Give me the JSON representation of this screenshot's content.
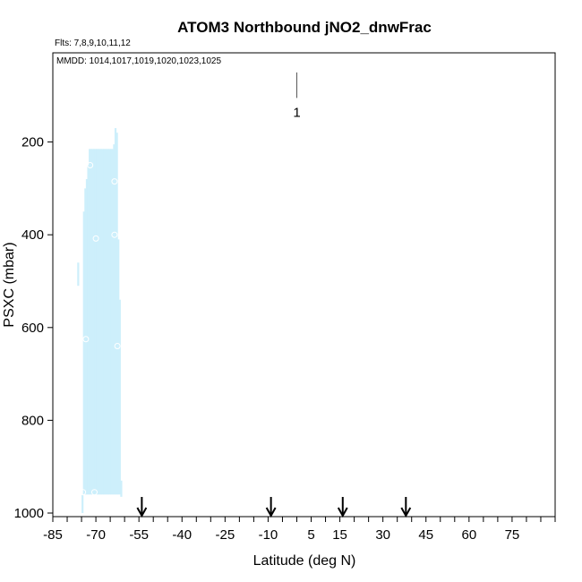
{
  "chart_data": {
    "type": "scatter",
    "title": "ATOM3 Northbound jNO2_dnwFrac",
    "subtitle_flights": "Flts: 7,8,9,10,11,12",
    "subtitle_dates": "MMDD: 1014,1017,1019,1020,1023,1025",
    "xlabel": "Latitude (deg N)",
    "ylabel": "PSXC (mbar)",
    "xlim": [
      -85,
      90
    ],
    "ylim": [
      1000,
      0
    ],
    "x_ticks": [
      -85,
      -70,
      -55,
      -40,
      -25,
      -10,
      5,
      15,
      30,
      45,
      60,
      75
    ],
    "x_minor_step": 5,
    "y_ticks": [
      200,
      400,
      600,
      800,
      1000
    ],
    "fill_color": "#cdeffb",
    "curtain": {
      "x_step": 0.5,
      "columns": [
        [
          -76.5,
          460,
          510
        ],
        [
          -75.0,
          960,
          1000
        ],
        [
          -74.5,
          350,
          960
        ],
        [
          -74.0,
          300,
          960
        ],
        [
          -73.5,
          280,
          960
        ],
        [
          -73.0,
          250,
          960
        ],
        [
          -72.5,
          215,
          960
        ],
        [
          -72.0,
          215,
          960
        ],
        [
          -71.5,
          215,
          960
        ],
        [
          -71.0,
          215,
          960
        ],
        [
          -70.5,
          215,
          960
        ],
        [
          -70.0,
          215,
          960
        ],
        [
          -69.5,
          215,
          960
        ],
        [
          -69.0,
          215,
          960
        ],
        [
          -68.5,
          215,
          960
        ],
        [
          -68.0,
          215,
          960
        ],
        [
          -67.5,
          215,
          960
        ],
        [
          -67.0,
          215,
          960
        ],
        [
          -66.5,
          215,
          960
        ],
        [
          -66.0,
          215,
          960
        ],
        [
          -65.5,
          215,
          960
        ],
        [
          -65.0,
          215,
          960
        ],
        [
          -64.5,
          215,
          960
        ],
        [
          -64.0,
          205,
          960
        ],
        [
          -63.5,
          170,
          960
        ],
        [
          -63.0,
          180,
          960
        ],
        [
          -62.5,
          410,
          960
        ],
        [
          -62.0,
          540,
          960
        ],
        [
          -61.5,
          930,
          965
        ]
      ]
    },
    "open_points": [
      [
        -73.5,
        625
      ],
      [
        -72.0,
        250
      ],
      [
        -70.0,
        408
      ],
      [
        -63.5,
        285
      ],
      [
        -63.5,
        400
      ],
      [
        -62.5,
        640
      ],
      [
        -70.5,
        955
      ],
      [
        -74.5,
        955
      ]
    ],
    "annotation": {
      "label": "1",
      "x": 0,
      "y_top": 50,
      "y_bottom": 105
    },
    "arrows": [
      -54,
      -9,
      16,
      38
    ]
  }
}
